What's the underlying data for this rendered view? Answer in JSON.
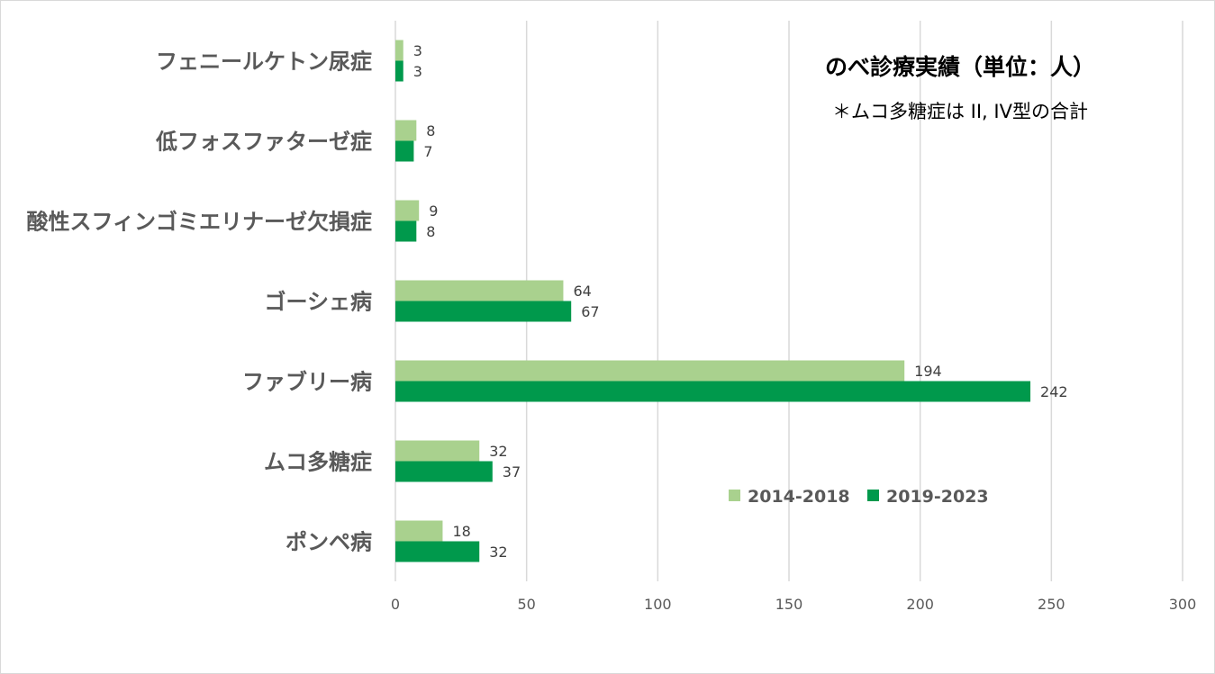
{
  "chart_data": {
    "type": "bar",
    "orientation": "horizontal",
    "title": "のべ診療実績（単位：人）",
    "annotation": "＊ムコ多糖症は II, IV型の合計",
    "categories": [
      "フェニールケトン尿症",
      "低フォスファターゼ症",
      "酸性スフィンゴミエリナーゼ欠損症",
      "ゴーシェ病",
      "ファブリー病",
      "ムコ多糖症",
      "ポンペ病"
    ],
    "series": [
      {
        "name": "2014-2018",
        "color": "#a9d18e",
        "values": [
          3,
          8,
          9,
          64,
          194,
          32,
          18
        ]
      },
      {
        "name": "2019-2023",
        "color": "#00994c",
        "values": [
          3,
          7,
          8,
          67,
          242,
          37,
          32
        ]
      }
    ],
    "xlim": [
      0,
      300
    ],
    "xticks": [
      "0",
      "50",
      "100",
      "150",
      "200",
      "250",
      "300"
    ],
    "grid": "vertical",
    "legend_position": "bottom-right",
    "data_labels": true
  }
}
